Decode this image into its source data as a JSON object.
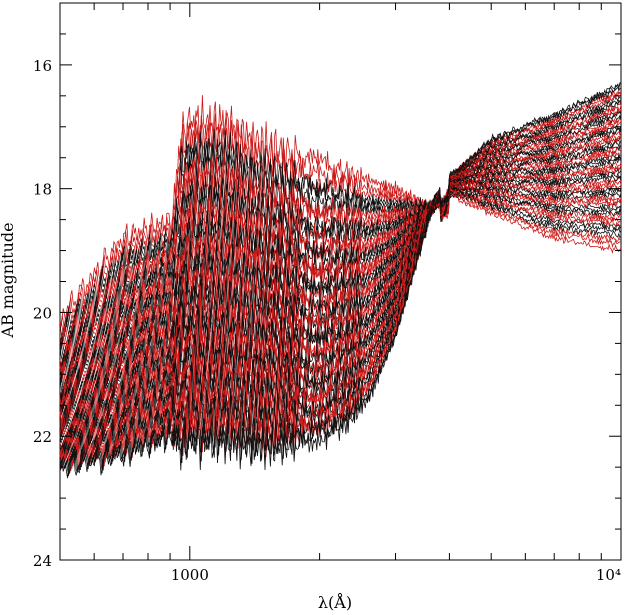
{
  "chart_data": {
    "type": "line",
    "title": "",
    "xlabel": "λ(Å)",
    "ylabel": "AB magnitude",
    "x_scale": "log",
    "xlim": [
      500,
      10000
    ],
    "ylim": [
      24,
      15
    ],
    "y_inverted": true,
    "x_tick_labels": [
      {
        "value": 1000,
        "label": "1000"
      },
      {
        "value": 10000,
        "label": "10⁴"
      }
    ],
    "y_tick_labels": [
      {
        "value": 16,
        "label": "16"
      },
      {
        "value": 18,
        "label": "18"
      },
      {
        "value": 20,
        "label": "20"
      },
      {
        "value": 22,
        "label": "22"
      },
      {
        "value": 24,
        "label": "24"
      }
    ],
    "grid": false,
    "colors": {
      "red_series": "#cc1a1a",
      "black_series": "#111111"
    },
    "series_count": 60,
    "series_style": "alternating groups of black and red spectra; young spectra bright in UV, old spectra faint in UV and bright in near-IR",
    "envelope": {
      "brightest_young": {
        "x": [
          500,
          700,
          912,
          950,
          1000,
          1200,
          1500,
          2000,
          3000,
          3646,
          4000,
          5000,
          7000,
          10000
        ],
        "y": [
          20.1,
          18.8,
          18.5,
          17.2,
          16.9,
          16.9,
          17.3,
          17.6,
          18.0,
          18.3,
          18.1,
          18.4,
          18.8,
          19.0
        ]
      },
      "faintest_old": {
        "x": [
          500,
          700,
          912,
          950,
          1000,
          1200,
          1500,
          2000,
          2300,
          2600,
          3000,
          3646,
          4000,
          5000,
          7000,
          10000
        ],
        "y": [
          22.5,
          22.3,
          22.0,
          22.2,
          22.1,
          22.1,
          22.2,
          22.0,
          21.8,
          21.4,
          20.4,
          18.3,
          17.8,
          17.2,
          16.8,
          16.3
        ]
      }
    }
  }
}
